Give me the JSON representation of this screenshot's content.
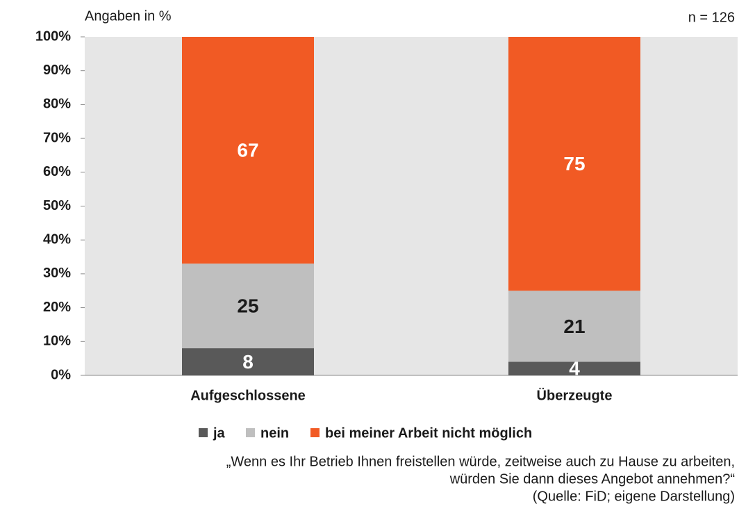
{
  "chart_data": {
    "type": "stacked_bar",
    "subtitle": "Angaben in %",
    "annotation": "n = 126",
    "categories": [
      "Aufgeschlossene",
      "Überzeugte"
    ],
    "series": [
      {
        "name": "ja",
        "color": "#595959",
        "values": [
          8,
          4
        ]
      },
      {
        "name": "nein",
        "color": "#bfbfbf",
        "values": [
          25,
          21
        ]
      },
      {
        "name": "bei meiner Arbeit nicht möglich",
        "color": "#f15a24",
        "values": [
          67,
          75
        ]
      }
    ],
    "ylim": [
      0,
      100
    ],
    "yticks": [
      {
        "value": 0,
        "label": "0%"
      },
      {
        "value": 10,
        "label": "10%"
      },
      {
        "value": 20,
        "label": "20%"
      },
      {
        "value": 30,
        "label": "30%"
      },
      {
        "value": 40,
        "label": "40%"
      },
      {
        "value": 50,
        "label": "50%"
      },
      {
        "value": 60,
        "label": "60%"
      },
      {
        "value": 70,
        "label": "70%"
      },
      {
        "value": 80,
        "label": "80%"
      },
      {
        "value": 90,
        "label": "90%"
      },
      {
        "value": 100,
        "label": "100%"
      }
    ],
    "legend": "bottom",
    "note": [
      "„Wenn es Ihr Betrieb Ihnen freistellen würde, zeitweise auch zu Hause zu arbeiten,",
      "würden Sie dann dieses Angebot annehmen?“",
      "(Quelle: FiD; eigene Darstellung)"
    ]
  }
}
